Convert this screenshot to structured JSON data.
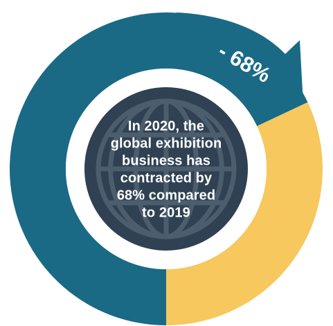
{
  "chart_data": {
    "type": "pie",
    "subtype": "donut",
    "slices": [
      {
        "label": "",
        "value": 68,
        "color": "#1a6a86"
      },
      {
        "label": "",
        "value": 32,
        "color": "#f6c85d"
      }
    ],
    "annotation": "- 68%",
    "center_text": [
      "In 2020, the",
      "global exhibition",
      "business has",
      "contracted by",
      "68% compared",
      "to 2019"
    ],
    "colors": {
      "teal": "#1a6a86",
      "yellow": "#f6c85d",
      "center": "#2f4152",
      "globe_lines": "#4c5d6d",
      "gap": "#ffffff"
    }
  }
}
